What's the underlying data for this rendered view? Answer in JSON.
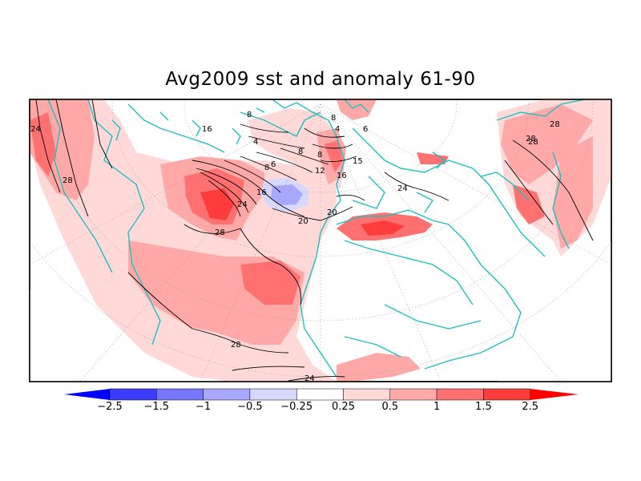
{
  "title": "Avg2009 sst and anomaly 61-90",
  "map": {
    "projection": "polar-stereographic",
    "coastline_color": "#20c0c0",
    "contour_color": "#000000",
    "graticule_style": "dotted",
    "contour_labels": [
      "8",
      "16",
      "4",
      "8",
      "6",
      "8",
      "8",
      "4",
      "8",
      "6",
      "12",
      "16",
      "16",
      "24",
      "20",
      "20",
      "24",
      "28",
      "28",
      "28",
      "28",
      "24",
      "24",
      "15",
      "28",
      "28"
    ]
  },
  "legend": {
    "colors": [
      "#0000ff",
      "#3c3cff",
      "#7878ff",
      "#a8a8ff",
      "#d8d8ff",
      "#ffffff",
      "#ffd8d8",
      "#ffa8a8",
      "#ff7070",
      "#ff3c3c",
      "#ff0000"
    ],
    "labels": [
      "-2.5",
      "-1.5",
      "-1",
      "-0.5",
      "-0.25",
      "0.25",
      "0.5",
      "1",
      "1.5",
      "2.5"
    ]
  }
}
